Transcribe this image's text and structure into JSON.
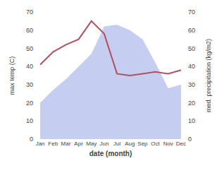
{
  "chart_data": {
    "type": "line",
    "categories": [
      "Jan",
      "Feb",
      "Mar",
      "Apr",
      "May",
      "Jun",
      "Jul",
      "Aug",
      "Sep",
      "Oct",
      "Nov",
      "Dec"
    ],
    "series": [
      {
        "type": "area",
        "axis": "y2",
        "color": "#c5cdf0",
        "values": [
          20,
          27,
          33,
          40,
          47,
          62,
          63,
          60,
          55,
          42,
          28,
          30
        ]
      },
      {
        "type": "line",
        "color": "#b05060",
        "values": [
          41,
          48,
          52,
          55,
          65,
          58,
          36,
          35,
          36,
          37,
          36,
          38
        ]
      }
    ],
    "xlabel": "date (month)",
    "ylabel": "max temp (C)",
    "y2label": "med. precipitation (kg/m2)",
    "ylim": [
      0,
      70
    ],
    "yticks": [
      0,
      10,
      20,
      30,
      40,
      50,
      60,
      70
    ],
    "y2lim": [
      0,
      70
    ],
    "y2ticks": [
      0,
      10,
      20,
      30,
      40,
      50,
      60,
      70
    ],
    "grid": false
  }
}
